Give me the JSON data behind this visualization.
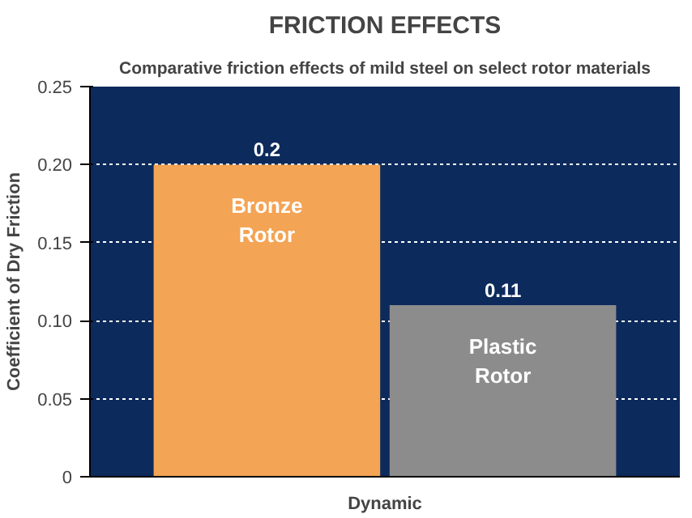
{
  "chart_data": {
    "type": "bar",
    "title": "FRICTION EFFECTS",
    "subtitle": "Comparative friction effects of mild steel on select rotor materials",
    "ylabel": "Coefficient of Dry Friction",
    "categories": [
      "Dynamic"
    ],
    "series": [
      {
        "name": "Bronze Rotor",
        "color": "#f4a455",
        "values": [
          0.2
        ]
      },
      {
        "name": "Plastic Rotor",
        "color": "#8c8c8c",
        "values": [
          0.11
        ]
      }
    ],
    "ylim": [
      0,
      0.25
    ],
    "yticks": [
      0,
      {
        "value": 0.05,
        "label": "0.05"
      },
      {
        "value": 0.1,
        "label": "0.10"
      },
      {
        "value": 0.15,
        "label": "0.15"
      },
      {
        "value": 0.2,
        "label": "0.20"
      },
      {
        "value": 0.25,
        "label": "0.25"
      }
    ],
    "grid": "y",
    "data_labels": true
  }
}
